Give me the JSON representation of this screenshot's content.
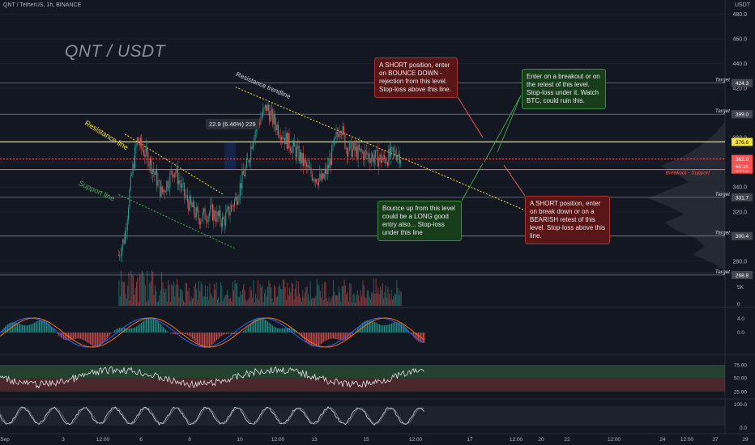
{
  "header": {
    "symbol_line": "QNT / TetherUS, 1h, BINANCE",
    "title": "QNT / USDT",
    "currency": "USDT"
  },
  "measure_label": "22.9 (6.46%) 229",
  "annotations": {
    "short_bounce": "A SHORT position, enter on BOUNCE DOWN - rejection from this level. Stop-loss above this line.",
    "breakout": "Enter on a breakout or on the retest of this level. Stop-loss under it. Watch BTC, could ruin this.",
    "bounce_up": "Bounce up from this level could be a LONG good entry also... Stop-loss under this line",
    "short_breakdown": "A SHORT position, enter on break down or on a BEARISH retest of this level. Stop-loss above this line."
  },
  "chart_data": [
    {
      "type": "line",
      "title": "QNT / USDT",
      "x_tick_labels": [
        "Sep",
        "3",
        "12:00",
        "6",
        "8",
        "10",
        "12:00",
        "13",
        "15",
        "12:00",
        "17",
        "12:00",
        "20",
        "22",
        "12:00",
        "24",
        "12:00",
        "27",
        "29"
      ],
      "price_axis_ticks": [
        480.0,
        460.0,
        440.0,
        420.0,
        400.0,
        380.0,
        360.0,
        340.0,
        320.0,
        300.0,
        280.0
      ],
      "ylim": [
        272,
        485
      ],
      "price_path": {
        "x": [
          "Sep 5 18:00",
          "Sep 6",
          "Sep 6 06:00",
          "Sep 6 12:00",
          "Sep 7",
          "Sep 7 12:00",
          "Sep 8",
          "Sep 8 12:00",
          "Sep 9",
          "Sep 9 12:00",
          "Sep 10",
          "Sep 10 12:00",
          "Sep 11",
          "Sep 11 06:00",
          "Sep 11 18:00",
          "Sep 12",
          "Sep 12 12:00",
          "Sep 13",
          "Sep 13 12:00",
          "Sep 14",
          "Sep 14 06:00",
          "Sep 14 18:00",
          "Sep 15",
          "Sep 15 12:00",
          "Sep 16",
          "Sep 16 12:00",
          "Sep 17",
          "Sep 17 06:00"
        ],
        "y": [
          285,
          300,
          345,
          378,
          362,
          335,
          355,
          330,
          315,
          320,
          312,
          330,
          360,
          385,
          405,
          395,
          380,
          368,
          352,
          345,
          355,
          392,
          372,
          368,
          365,
          362,
          368,
          365
        ]
      },
      "trendlines": [
        {
          "name": "Resistance trendline",
          "points": [
            [
              "Sep 10 12:00",
              421
            ],
            [
              "Sep 24 18:00",
              300
            ]
          ]
        },
        {
          "name": "Resistance line",
          "points": [
            [
              "Sep 6",
              383
            ],
            [
              "Sep 10",
              334
            ]
          ]
        },
        {
          "name": "Support line",
          "points": [
            [
              "Sep 5 18:00",
              334
            ],
            [
              "Sep 10 12:00",
              290
            ]
          ]
        }
      ],
      "levels": [
        {
          "label": "Target",
          "value": 424.3
        },
        {
          "label": "Target",
          "value": 399.0
        },
        {
          "label": "",
          "value": 376.6,
          "color": "#f5e33b"
        },
        {
          "label": "",
          "value": 362.8,
          "color": "#ff5252",
          "style": "dotted"
        },
        {
          "label": "Breakout - Support",
          "value": 354.2,
          "color": "#ff5252"
        },
        {
          "label": "Target",
          "value": 331.7
        },
        {
          "label": "Target",
          "value": 300.4
        },
        {
          "label": "Target",
          "value": 268.8
        }
      ],
      "countdown_tag": "45:28"
    },
    {
      "type": "bar",
      "title": "Volume",
      "ticks": [
        "5K",
        "0"
      ]
    },
    {
      "type": "bar",
      "title": "MACD",
      "ticks": [
        "4.0",
        "0.0"
      ]
    },
    {
      "type": "line",
      "title": "RSI",
      "ticks": [
        "75.00",
        "50.00",
        "25.00"
      ]
    },
    {
      "type": "line",
      "title": "Stochastic",
      "ticks": [
        "100.0",
        "0.0"
      ]
    }
  ]
}
